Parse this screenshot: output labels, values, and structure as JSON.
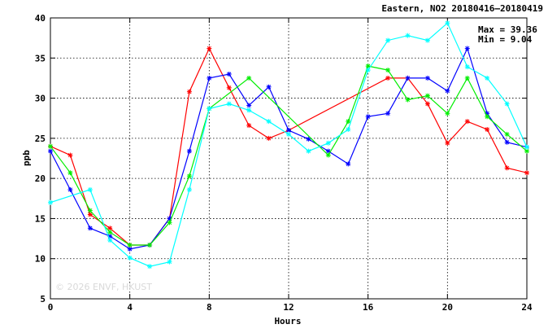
{
  "chart_data": {
    "type": "line",
    "title": "Eastern, NO2 20180416–20180419",
    "xlabel": "Hours",
    "ylabel": "ppb",
    "xlim": [
      0,
      24
    ],
    "ylim": [
      5,
      40
    ],
    "xticks": [
      0,
      4,
      8,
      12,
      16,
      20,
      24
    ],
    "yticks": [
      5,
      10,
      15,
      20,
      25,
      30,
      35,
      40
    ],
    "grid": true,
    "stats": {
      "max_label": "Max = 39.36",
      "min_label": "Min =  9.04"
    },
    "watermark": "© 2026  ENVF, HKUST",
    "series": [
      {
        "color": "#ff0000",
        "x": [
          0,
          1,
          2,
          3,
          4,
          5,
          6,
          7,
          8,
          9,
          10,
          11,
          12,
          17,
          18,
          19,
          20,
          21,
          22,
          23,
          24
        ],
        "values": [
          24.0,
          22.9,
          15.5,
          13.8,
          11.7,
          11.7,
          15.0,
          30.8,
          36.2,
          31.3,
          26.6,
          25.0,
          26.0,
          32.5,
          32.5,
          29.3,
          24.4,
          27.1,
          26.1,
          21.3,
          20.7
        ]
      },
      {
        "color": "#0000ff",
        "x": [
          0,
          1,
          2,
          3,
          4,
          5,
          6,
          7,
          8,
          9,
          10,
          11,
          12,
          13,
          14,
          15,
          16,
          17,
          18,
          19,
          20,
          21,
          22,
          23,
          24
        ],
        "values": [
          23.4,
          18.6,
          13.8,
          12.8,
          11.2,
          11.7,
          15.0,
          23.4,
          32.5,
          33.0,
          29.1,
          31.4,
          26.0,
          24.9,
          23.4,
          21.8,
          27.7,
          28.1,
          32.5,
          32.5,
          30.9,
          36.2,
          28.1,
          24.5,
          23.9
        ]
      },
      {
        "color": "#00ee00",
        "x": [
          0,
          1,
          2,
          3,
          4,
          5,
          6,
          7,
          8,
          10,
          14,
          15,
          16,
          17,
          18,
          19,
          20,
          21,
          22,
          23,
          24
        ],
        "values": [
          24.0,
          20.7,
          16.0,
          13.3,
          11.7,
          11.7,
          14.5,
          20.3,
          28.7,
          32.5,
          22.9,
          27.1,
          34.0,
          33.5,
          29.8,
          30.3,
          28.1,
          32.5,
          27.7,
          25.5,
          23.4
        ]
      },
      {
        "color": "#00ffff",
        "x": [
          0,
          2,
          3,
          4,
          5,
          6,
          7,
          8,
          9,
          10,
          11,
          12,
          13,
          14,
          15,
          16,
          17,
          18,
          19,
          20,
          21,
          22,
          23,
          24
        ],
        "values": [
          17.0,
          18.6,
          12.3,
          10.1,
          9.04,
          9.6,
          18.6,
          28.7,
          29.3,
          28.5,
          27.1,
          25.5,
          23.4,
          24.4,
          26.1,
          33.5,
          37.2,
          37.8,
          37.2,
          39.36,
          33.9,
          32.5,
          29.3,
          23.9
        ]
      }
    ]
  }
}
